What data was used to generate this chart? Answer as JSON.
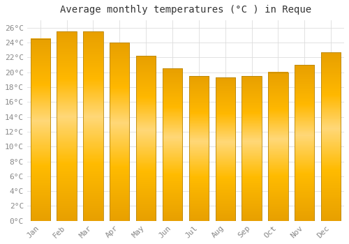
{
  "title": "Average monthly temperatures (°C ) in Reque",
  "months": [
    "Jan",
    "Feb",
    "Mar",
    "Apr",
    "May",
    "Jun",
    "Jul",
    "Aug",
    "Sep",
    "Oct",
    "Nov",
    "Dec"
  ],
  "values": [
    24.5,
    25.5,
    25.5,
    24.0,
    22.2,
    20.5,
    19.5,
    19.3,
    19.5,
    20.0,
    21.0,
    22.7
  ],
  "bar_color_top": "#FFB300",
  "bar_color_bottom": "#FFA000",
  "bar_color_center": "#FFD060",
  "bar_edge_color": "#B8860B",
  "background_color": "#FFFFFF",
  "plot_bg_color": "#FFFFFF",
  "grid_color": "#DDDDDD",
  "ylim": [
    0,
    27
  ],
  "ytick_step": 2,
  "title_fontsize": 10,
  "tick_fontsize": 8,
  "tick_label_color": "#888888",
  "title_color": "#333333"
}
